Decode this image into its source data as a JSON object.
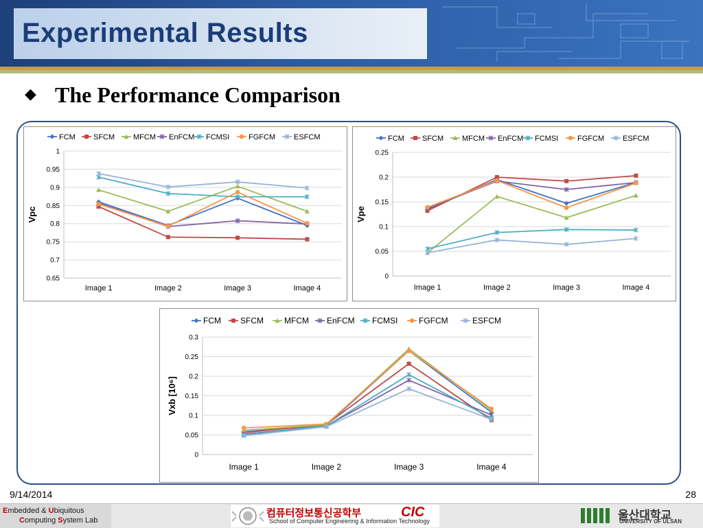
{
  "slide": {
    "title": "Experimental Results",
    "subtitle": "The Performance Comparison",
    "bullet_icon": "diamond-bullet-icon",
    "date": "9/14/2014",
    "page": "28"
  },
  "footer": {
    "lab_line1": [
      "E",
      "mbedded & ",
      "U",
      "biquitous"
    ],
    "lab_line2": [
      "C",
      "omputing ",
      "S",
      "ystem Lab"
    ],
    "school_korean": "컴퓨터정보통신공학부",
    "school_logo": "CIC",
    "school_english": "School of Computer Engineering & Information Technology",
    "univ_korean": "울산대학교",
    "univ_english": "UNIVERSITY OF ULSAN"
  },
  "colors": {
    "FCM": "#4472c4",
    "SFCM": "#be4b48",
    "MFCM": "#9bbb59",
    "EnFCM": "#7f63a4",
    "FCMSI": "#4bacc6",
    "FGFCM": "#f79646",
    "ESFCM": "#95b3d7"
  },
  "chart_data": [
    {
      "type": "line",
      "ylabel": "Vpc",
      "categories": [
        "Image 1",
        "Image 2",
        "Image 3",
        "Image 4"
      ],
      "ylim": [
        0.65,
        1
      ],
      "yticks": [
        "0.65",
        "0.7",
        "0.75",
        "0.8",
        "0.85",
        "0.9",
        "0.95",
        "1"
      ],
      "legend": "top",
      "grid": true,
      "series": [
        {
          "name": "FCM",
          "values": [
            0.86,
            0.795,
            0.87,
            0.795
          ]
        },
        {
          "name": "SFCM",
          "values": [
            0.847,
            0.763,
            0.761,
            0.757
          ]
        },
        {
          "name": "MFCM",
          "values": [
            0.893,
            0.834,
            0.903,
            0.834
          ]
        },
        {
          "name": "EnFCM",
          "values": [
            0.856,
            0.792,
            0.808,
            0.799
          ]
        },
        {
          "name": "FCMSI",
          "values": [
            0.928,
            0.883,
            0.874,
            0.874
          ]
        },
        {
          "name": "FGFCM",
          "values": [
            0.854,
            0.793,
            0.887,
            0.801
          ]
        },
        {
          "name": "ESFCM",
          "values": [
            0.938,
            0.901,
            0.915,
            0.898
          ]
        }
      ]
    },
    {
      "type": "line",
      "ylabel": "Vpe",
      "categories": [
        "Image 1",
        "Image 2",
        "Image 3",
        "Image 4"
      ],
      "ylim": [
        0,
        0.25
      ],
      "yticks": [
        "0",
        "0.05",
        "0.1",
        "0.15",
        "0.2",
        "0.25"
      ],
      "legend": "top",
      "grid": true,
      "series": [
        {
          "name": "FCM",
          "values": [
            0.135,
            0.195,
            0.147,
            0.189
          ]
        },
        {
          "name": "SFCM",
          "values": [
            0.132,
            0.2,
            0.192,
            0.203
          ]
        },
        {
          "name": "MFCM",
          "values": [
            0.047,
            0.161,
            0.118,
            0.163
          ]
        },
        {
          "name": "EnFCM",
          "values": [
            0.137,
            0.192,
            0.175,
            0.189
          ]
        },
        {
          "name": "FCMSI",
          "values": [
            0.055,
            0.088,
            0.094,
            0.093
          ]
        },
        {
          "name": "FGFCM",
          "values": [
            0.139,
            0.193,
            0.138,
            0.188
          ]
        },
        {
          "name": "ESFCM",
          "values": [
            0.047,
            0.073,
            0.064,
            0.076
          ]
        }
      ]
    },
    {
      "type": "line",
      "ylabel": "Vxb [10⁶]",
      "categories": [
        "Image 1",
        "Image 2",
        "Image 3",
        "Image 4"
      ],
      "ylim": [
        0,
        0.3
      ],
      "yticks": [
        "0",
        "0.05",
        "0.1",
        "0.15",
        "0.2",
        "0.25",
        "0.3"
      ],
      "legend": "top",
      "grid": true,
      "series": [
        {
          "name": "FCM",
          "values": [
            0.058,
            0.075,
            0.265,
            0.108
          ]
        },
        {
          "name": "SFCM",
          "values": [
            0.056,
            0.077,
            0.232,
            0.088
          ]
        },
        {
          "name": "MFCM",
          "values": [
            0.062,
            0.076,
            0.27,
            0.113
          ]
        },
        {
          "name": "EnFCM",
          "values": [
            0.052,
            0.073,
            0.19,
            0.101
          ]
        },
        {
          "name": "FCMSI",
          "values": [
            0.05,
            0.073,
            0.204,
            0.093
          ]
        },
        {
          "name": "FGFCM",
          "values": [
            0.068,
            0.078,
            0.265,
            0.117
          ]
        },
        {
          "name": "ESFCM",
          "values": [
            0.048,
            0.071,
            0.168,
            0.09
          ]
        }
      ]
    }
  ]
}
